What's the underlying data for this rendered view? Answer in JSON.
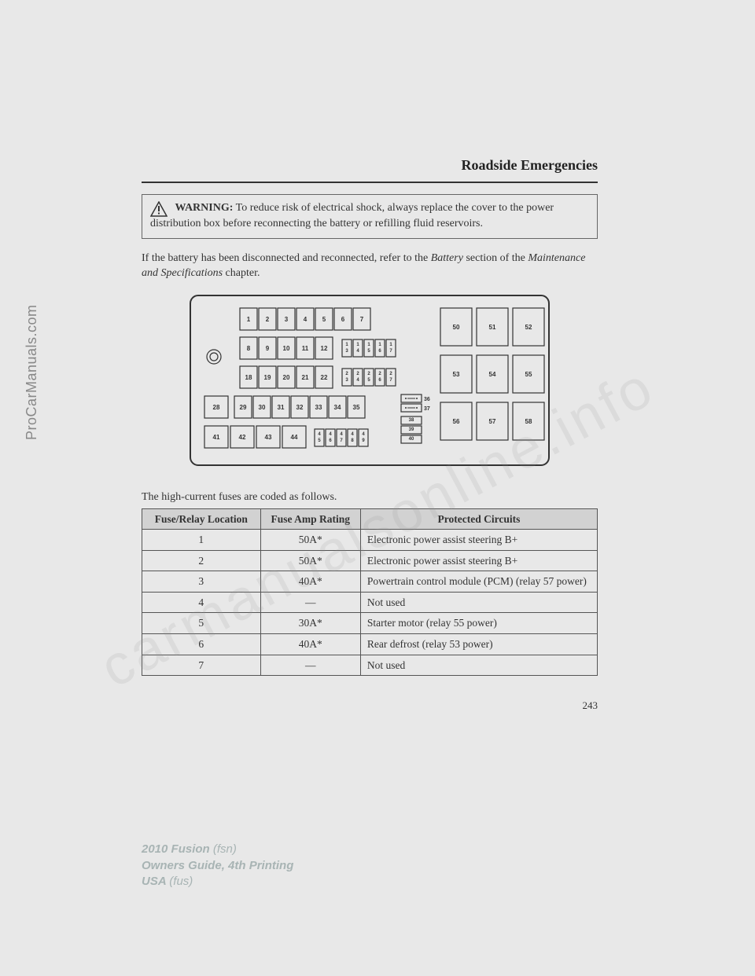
{
  "side_label": "ProCarManuals.com",
  "watermark": "carmanualsonline.info",
  "chapter_title": "Roadside Emergencies",
  "warning": {
    "label": "WARNING:",
    "text": " To reduce risk of electrical shock, always replace the cover to the power distribution box before reconnecting the battery or refilling fluid reservoirs."
  },
  "intro_p1": "If the battery has been disconnected and reconnected, refer to the ",
  "intro_i1": "Battery",
  "intro_p2": " section of the ",
  "intro_i2": "Maintenance and Specifications",
  "intro_p3": " chapter.",
  "diagram": {
    "row1": [
      "1",
      "2",
      "3",
      "4",
      "5",
      "6",
      "7"
    ],
    "row2_a": [
      "8",
      "9",
      "10",
      "11",
      "12"
    ],
    "row2_b": [
      "13",
      "14",
      "15",
      "16",
      "17"
    ],
    "row3_a": [
      "18",
      "19",
      "20",
      "21",
      "22"
    ],
    "row3_b": [
      "23",
      "24",
      "25",
      "26",
      "27"
    ],
    "row4_left": "28",
    "row4_mid": [
      "29",
      "30",
      "31",
      "32",
      "33",
      "34",
      "35"
    ],
    "row5_left": [
      "41",
      "42",
      "43",
      "44"
    ],
    "row5_small": [
      "45",
      "46",
      "47",
      "48",
      "49"
    ],
    "side_pair": [
      "36",
      "37"
    ],
    "side_stack": [
      "38",
      "39",
      "40"
    ],
    "big_row1": [
      "50",
      "51",
      "52"
    ],
    "big_row2": [
      "53",
      "54",
      "55"
    ],
    "big_row3": [
      "56",
      "57",
      "58"
    ]
  },
  "table_caption": "The high-current fuses are coded as follows.",
  "table": {
    "headers": [
      "Fuse/Relay Location",
      "Fuse Amp Rating",
      "Protected Circuits"
    ],
    "rows": [
      [
        "1",
        "50A*",
        "Electronic power assist steering B+"
      ],
      [
        "2",
        "50A*",
        "Electronic power assist steering B+"
      ],
      [
        "3",
        "40A*",
        "Powertrain control module (PCM) (relay 57 power)"
      ],
      [
        "4",
        "—",
        "Not used"
      ],
      [
        "5",
        "30A*",
        "Starter motor (relay 55 power)"
      ],
      [
        "6",
        "40A*",
        "Rear defrost (relay 53 power)"
      ],
      [
        "7",
        "—",
        "Not used"
      ]
    ]
  },
  "page_number": "243",
  "footer": {
    "l1a": "2010 Fusion ",
    "l1b": "(fsn)",
    "l2": "Owners Guide, 4th Printing",
    "l3a": "USA ",
    "l3b": "(fus)"
  },
  "colors": {
    "page_bg": "#e8e8e8",
    "text": "#333333",
    "header_bg": "#d2d2d2",
    "footer_text": "#a8b4b4"
  }
}
